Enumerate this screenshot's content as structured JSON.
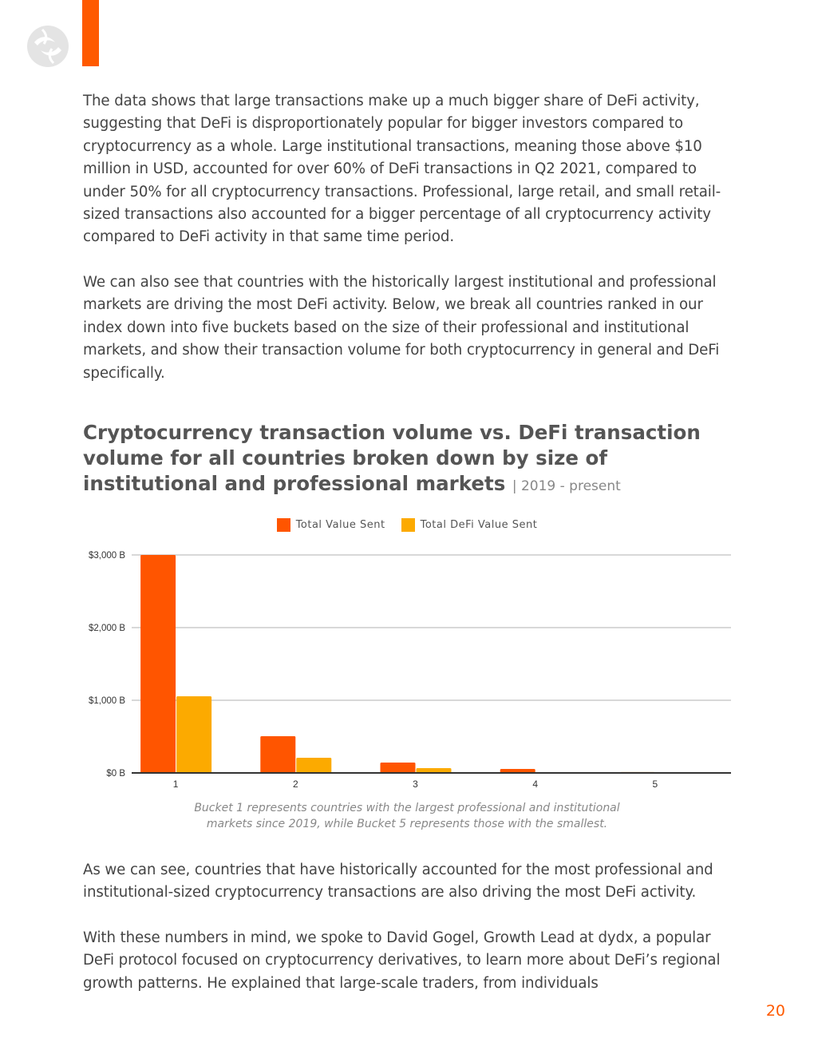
{
  "header": {
    "logo_name": "Chainalysis logo"
  },
  "paragraphs": [
    "The data shows that large transactions make up a much bigger share of DeFi activity, suggesting that DeFi is disproportionately popular for bigger investors compared to cryptocurrency as a whole. Large institutional transactions, meaning those above $10 million in USD, accounted for over 60% of DeFi transactions in Q2 2021, compared to under 50% for all cryptocurrency transactions. Professional, large retail, and small retail-sized transactions also accounted for a bigger percentage of all cryptocurrency activity compared to DeFi activity in that same time period.",
    "We can also see that countries with the historically largest institutional and professional markets are driving the most DeFi activity. Below, we break all countries ranked in our index down into five buckets based on the size of their professional and institutional markets, and show their transaction volume for both cryptocurrency in general and DeFi specifically.",
    "As we can see, countries that have historically accounted for the most professional and institutional-sized cryptocurrency transactions are also driving the most DeFi activity.",
    "With these numbers in mind, we spoke to David Gogel, Growth Lead at dydx, a popular DeFi protocol focused on cryptocurrency derivatives, to learn more about DeFi’s regional growth patterns. He explained that large-scale traders, from individuals"
  ],
  "chart_heading": {
    "title": "Cryptocurrency transaction volume vs. DeFi transaction volume for all countries broken down by size of institutional and professional markets",
    "subtitle": "| 2019 - present"
  },
  "chart_data": {
    "type": "bar",
    "title": "Cryptocurrency transaction volume vs. DeFi transaction volume for all countries broken down by size of institutional and professional markets",
    "xlabel": "",
    "ylabel": "",
    "categories": [
      "1",
      "2",
      "3",
      "4",
      "5"
    ],
    "series": [
      {
        "name": "Total Value Sent",
        "color": "#ff5500",
        "values": [
          3000,
          505,
          143,
          55,
          12
        ]
      },
      {
        "name": "Total DeFi Value Sent",
        "color": "#fcaa00",
        "values": [
          1055,
          209,
          66,
          10,
          5
        ]
      }
    ],
    "ylim": [
      0,
      3000
    ],
    "yticks": [
      0,
      1000,
      2000,
      3000
    ],
    "ytick_labels": [
      "$0 B",
      "$1,000 B",
      "$2,000 B",
      "$3,000 B"
    ],
    "grid": true,
    "legend": "top"
  },
  "caption": [
    "Bucket 1 represents countries with the largest professional and institutional",
    "markets since 2019, while Bucket 5 represents those with the smallest."
  ],
  "page_number": "20"
}
